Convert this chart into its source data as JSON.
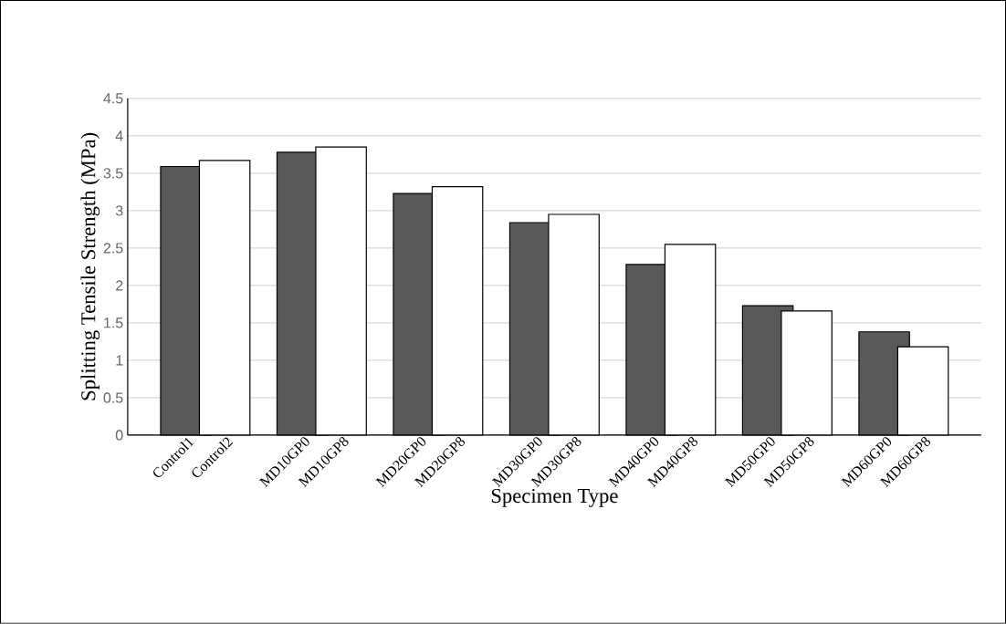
{
  "chart_data": {
    "type": "bar",
    "xlabel": "Specimen Type",
    "ylabel": "Splitting Tensile Strength (MPa)",
    "categories": [
      "Control1",
      "Control2",
      "MD10GP0",
      "MD10GP8",
      "MD20GP0",
      "MD20GP8",
      "MD30GP0",
      "MD30GP8",
      "MD40GP0",
      "MD40GP8",
      "MD50GP0",
      "MD50GP8",
      "MD60GP0",
      "MD60GP8"
    ],
    "values": [
      3.59,
      3.67,
      3.78,
      3.85,
      3.23,
      3.32,
      2.84,
      2.95,
      2.28,
      2.55,
      1.73,
      1.66,
      1.38,
      1.18
    ],
    "colors": [
      "#595959",
      "#ffffff",
      "#595959",
      "#ffffff",
      "#595959",
      "#ffffff",
      "#595959",
      "#ffffff",
      "#595959",
      "#ffffff",
      "#595959",
      "#ffffff",
      "#595959",
      "#ffffff"
    ],
    "ylim": [
      0,
      4.5
    ],
    "yticks": [
      0,
      0.5,
      1,
      1.5,
      2,
      2.5,
      3,
      3.5,
      4,
      4.5
    ],
    "grid": "y"
  }
}
